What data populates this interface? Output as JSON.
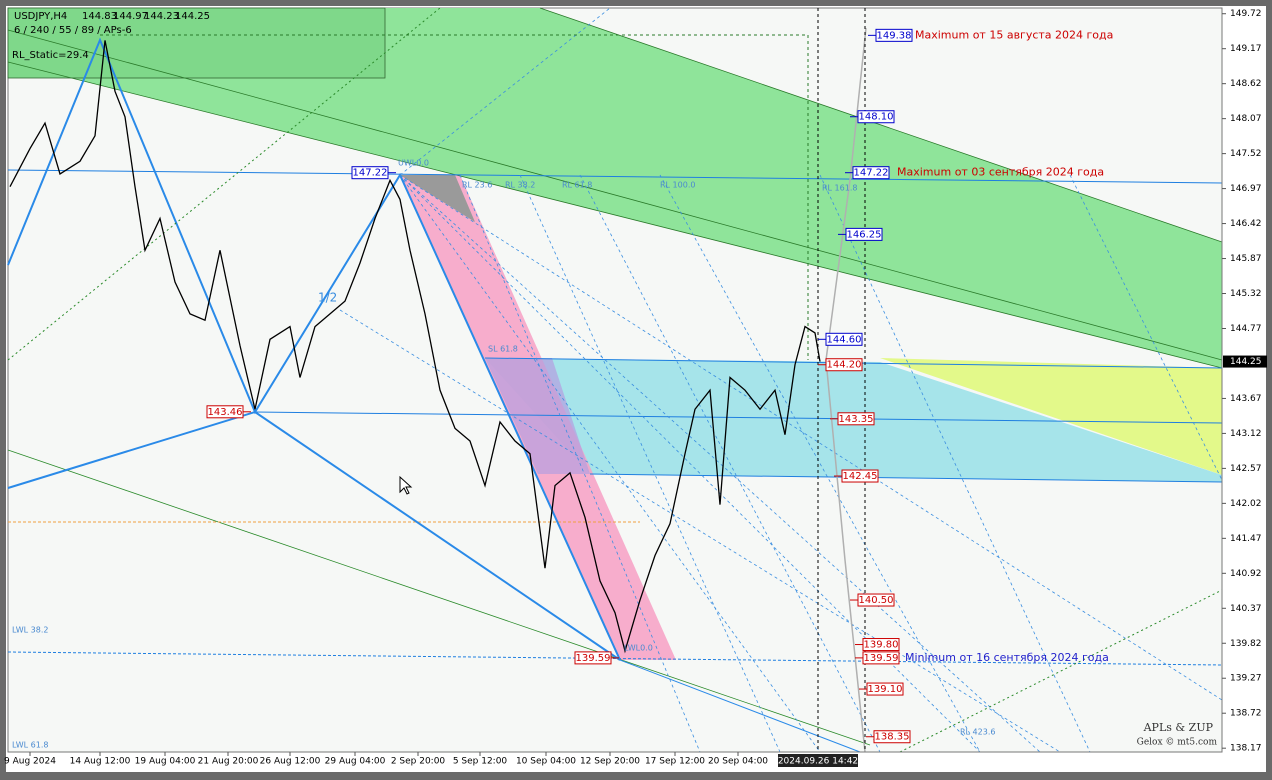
{
  "chart_data": {
    "type": "line",
    "title": "USDJPY,H4",
    "header_prices": [
      144.83,
      144.97,
      144.23,
      144.25
    ],
    "indicator": "6 / 240 / 55 / 89 / APs-6",
    "rl_static": "RL_Static=29.4",
    "watermark": [
      "APLs & ZUP",
      "Gelox © mt5.com"
    ],
    "x": [
      2,
      22,
      37,
      52,
      72,
      87,
      97,
      107,
      117,
      127,
      137,
      152,
      167,
      182,
      197,
      212,
      232,
      247,
      262,
      282,
      292,
      307,
      322,
      337,
      352,
      367,
      382,
      392,
      402,
      417,
      432,
      447,
      462,
      477,
      492,
      507,
      522,
      537,
      547,
      562,
      577,
      592,
      607,
      617,
      632,
      647,
      662,
      677,
      687,
      702,
      712,
      722,
      737,
      752,
      767,
      777,
      787,
      797,
      807,
      812
    ],
    "values": [
      147.0,
      147.6,
      148.0,
      147.2,
      147.4,
      147.8,
      149.3,
      148.5,
      148.1,
      147.0,
      146.0,
      146.5,
      145.5,
      145.0,
      144.9,
      146.0,
      144.5,
      143.5,
      144.6,
      144.8,
      144.0,
      144.8,
      145.0,
      145.2,
      145.8,
      146.5,
      147.1,
      146.8,
      146.0,
      145.0,
      143.8,
      143.2,
      143.0,
      142.3,
      143.3,
      143.0,
      142.8,
      141.0,
      142.3,
      142.5,
      141.8,
      140.8,
      140.3,
      139.7,
      140.5,
      141.2,
      141.7,
      142.8,
      143.5,
      143.8,
      142.0,
      144.0,
      143.8,
      143.5,
      143.8,
      143.1,
      144.2,
      144.8,
      144.7,
      144.25
    ],
    "color": "#000000",
    "xlim": [
      0,
      1214
    ],
    "xticks": [
      {
        "value": 22,
        "label": "9 Aug 2024"
      },
      {
        "value": 92,
        "label": "14 Aug 12:00"
      },
      {
        "value": 157,
        "label": "19 Aug 04:00"
      },
      {
        "value": 220,
        "label": "21 Aug 20:00"
      },
      {
        "value": 282,
        "label": "26 Aug 12:00"
      },
      {
        "value": 347,
        "label": "29 Aug 04:00"
      },
      {
        "value": 410,
        "label": "2 Sep 20:00"
      },
      {
        "value": 472,
        "label": "5 Sep 12:00"
      },
      {
        "value": 538,
        "label": "10 Sep 04:00"
      },
      {
        "value": 602,
        "label": "12 Sep 20:00"
      },
      {
        "value": 667,
        "label": "17 Sep 12:00"
      },
      {
        "value": 730,
        "label": "20 Sep 04:00"
      }
    ],
    "cursor_time": {
      "value": 810,
      "label": "2024.09.26 14:42"
    },
    "ylim": [
      138.11,
      149.81
    ],
    "yticks": [
      149.72,
      149.17,
      148.62,
      148.07,
      147.52,
      146.97,
      146.42,
      145.87,
      145.32,
      144.77,
      143.67,
      143.12,
      142.57,
      142.02,
      141.47,
      140.92,
      140.37,
      139.82,
      139.27,
      138.72,
      138.17
    ],
    "current_price": 144.25,
    "right_levels": [
      {
        "value": 149.38,
        "color": "#0000cc"
      },
      {
        "value": 148.1,
        "label": "148.10",
        "color": "#0000cc"
      },
      {
        "value": 147.22,
        "color": "#0000cc"
      },
      {
        "value": 146.25,
        "color": "#0000cc"
      },
      {
        "value": 144.6,
        "label": "144.60",
        "color": "#0000cc"
      },
      {
        "value": 144.2,
        "label": "144.20",
        "color": "#cc0000"
      },
      {
        "value": 143.35,
        "color": "#cc0000"
      },
      {
        "value": 142.45,
        "color": "#cc0000"
      },
      {
        "value": 140.5,
        "label": "140.50",
        "color": "#cc0000"
      },
      {
        "value": 139.8,
        "label": "139.80",
        "color": "#cc0000"
      },
      {
        "value": 139.59,
        "color": "#cc0000"
      },
      {
        "value": 139.1,
        "label": "139.10",
        "color": "#cc0000"
      },
      {
        "value": 138.35,
        "color": "#cc0000"
      }
    ],
    "left_levels": [
      {
        "value": 147.22,
        "color": "#0000cc"
      },
      {
        "value": 143.46,
        "color": "#cc0000"
      },
      {
        "value": 139.59,
        "color": "#cc0000"
      }
    ],
    "annotations": [
      {
        "text": "Maximum от 15 августа 2024 года",
        "value": 149.38,
        "color": "#cc0000"
      },
      {
        "text": "Maximum от 03 сентября 2024 года",
        "value": 147.22,
        "color": "#cc0000"
      },
      {
        "text": "Minimum от 16  сентября 2024 года",
        "value": 139.59,
        "color": "#2222cc"
      }
    ],
    "fib_labels": [
      "UWL0.0",
      "SL 61.8",
      "1/2",
      "RL 23.6",
      "RL 38.2",
      "RL 61.8",
      "RL 100.0",
      "LWL0.0",
      "RL 161.8",
      "RL 423.6",
      "LWL 38.2",
      "LWL 61.8"
    ]
  }
}
